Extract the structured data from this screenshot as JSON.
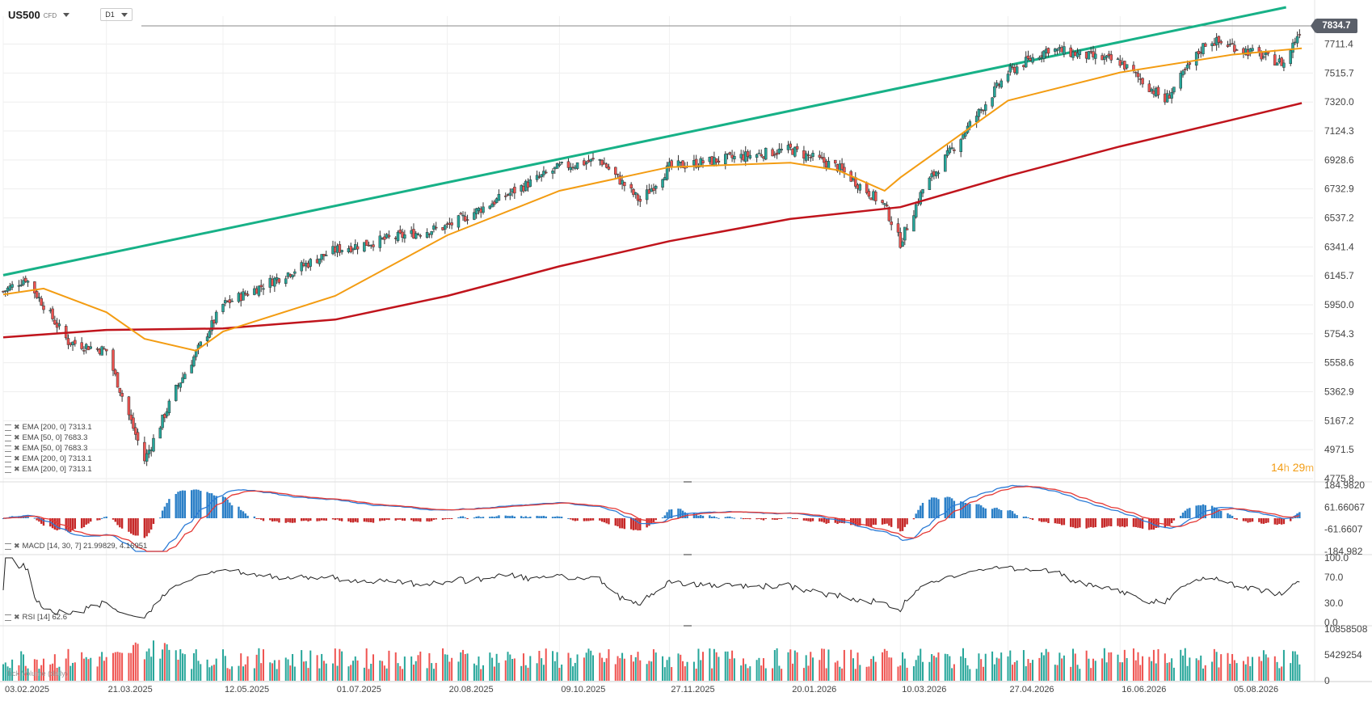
{
  "header": {
    "symbol": "US500",
    "symbol_type": "CFD",
    "timeframe": "D1"
  },
  "price_tag": "7834.7",
  "countdown": {
    "hours": "14",
    "h_unit": "h",
    "minutes": "29",
    "m_unit": "m"
  },
  "indicators": [
    {
      "label": "EMA [200, 0] 7313.1"
    },
    {
      "label": "EMA [50, 0] 7683.3"
    },
    {
      "label": "EMA [50, 0] 7683.3"
    },
    {
      "label": "EMA [200, 0] 7313.1"
    },
    {
      "label": "EMA [200, 0] 7313.1"
    }
  ],
  "macd_label": "MACD [14, 30, 7] 21.99829, 4.16951",
  "rsi_label": "RSI [14] 62.6",
  "volume_label": "Tick Volume (daily)",
  "colors": {
    "up": "#26a69a",
    "down": "#ef5350",
    "ema50": "#f39c12",
    "ema200": "#c0141c",
    "trendline": "#17b187",
    "macd_line": "#2b7bd6",
    "signal_line": "#e53935",
    "hist_up": "#2a7fc7",
    "hist_down": "#c62828"
  },
  "chart_data": {
    "type": "candlestick",
    "x_axis": {
      "type": "date",
      "tick_labels": [
        "03.02.2025",
        "21.03.2025",
        "12.05.2025",
        "01.07.2025",
        "20.08.2025",
        "09.10.2025",
        "27.11.2025",
        "20.01.2026",
        "10.03.2026",
        "27.04.2026",
        "16.06.2026",
        "05.08.2026"
      ]
    },
    "price_axis": {
      "tick_labels": [
        "7711.4",
        "7515.7",
        "7320.0",
        "7124.3",
        "6928.6",
        "6732.9",
        "6537.2",
        "6341.4",
        "6145.7",
        "5950.0",
        "5754.3",
        "5558.6",
        "5362.9",
        "5167.2",
        "4971.5",
        "4775.8"
      ],
      "range": [
        4775.8,
        7900
      ],
      "last_price": 7834.7
    },
    "price_path": {
      "x": [
        "03.02.2025",
        "13.02.2025",
        "04.03.2025",
        "21.03.2025",
        "07.04.2025",
        "21.04.2025",
        "12.05.2025",
        "01.07.2025",
        "20.08.2025",
        "09.10.2025",
        "27.10.2025",
        "14.11.2025",
        "27.11.2025",
        "20.01.2026",
        "10.02.2026",
        "03.03.2026",
        "10.03.2026",
        "20.03.2026",
        "27.04.2026",
        "15.05.2026",
        "16.06.2026",
        "06.07.2026",
        "25.07.2026",
        "05.08.2026",
        "28.08.2026",
        "05.09.2026"
      ],
      "close": [
        6040,
        6130,
        5700,
        5640,
        4900,
        5380,
        5950,
        6320,
        6480,
        6880,
        6930,
        6650,
        6880,
        7000,
        6880,
        6620,
        6370,
        6730,
        7520,
        7680,
        7590,
        7330,
        7740,
        7700,
        7580,
        7834.7
      ]
    },
    "series": [
      {
        "name": "EMA [200, 0] 7313.1",
        "x": [
          "03.02.2025",
          "21.03.2025",
          "12.05.2025",
          "01.07.2025",
          "20.08.2025",
          "09.10.2025",
          "27.11.2025",
          "20.01.2026",
          "10.03.2026",
          "27.04.2026",
          "16.06.2026",
          "05.08.2026",
          "05.09.2026"
        ],
        "y": [
          5730,
          5780,
          5790,
          5850,
          6010,
          6210,
          6380,
          6530,
          6610,
          6820,
          7020,
          7200,
          7313.1
        ]
      },
      {
        "name": "EMA [50, 0] 7683.3",
        "x": [
          "03.02.2025",
          "21.02.2025",
          "21.03.2025",
          "07.04.2025",
          "30.04.2025",
          "12.05.2025",
          "01.07.2025",
          "20.08.2025",
          "09.10.2025",
          "27.11.2025",
          "20.01.2026",
          "10.02.2026",
          "03.03.2026",
          "10.03.2026",
          "27.04.2026",
          "16.06.2026",
          "05.08.2026",
          "05.09.2026"
        ],
        "y": [
          6020,
          6060,
          5900,
          5720,
          5640,
          5770,
          6010,
          6420,
          6720,
          6880,
          6910,
          6860,
          6720,
          6810,
          7330,
          7520,
          7640,
          7683.3
        ]
      }
    ],
    "trendline": {
      "from": {
        "x": "03.02.2025",
        "y": 6150
      },
      "to": {
        "x": "29.08.2026",
        "y": 7960
      }
    },
    "macd": {
      "tick_labels": [
        "184.9820",
        "61.66067",
        "-61.6607",
        "-184.982"
      ],
      "range": [
        -184.982,
        184.982
      ]
    },
    "rsi": {
      "tick_labels": [
        "100.0",
        "70.0",
        "30.0",
        "0.0"
      ],
      "range": [
        0,
        100
      ],
      "last": 62.6
    },
    "volume": {
      "tick_labels": [
        "10858508",
        "5429254",
        "0"
      ],
      "range": [
        0,
        10858508
      ]
    }
  }
}
